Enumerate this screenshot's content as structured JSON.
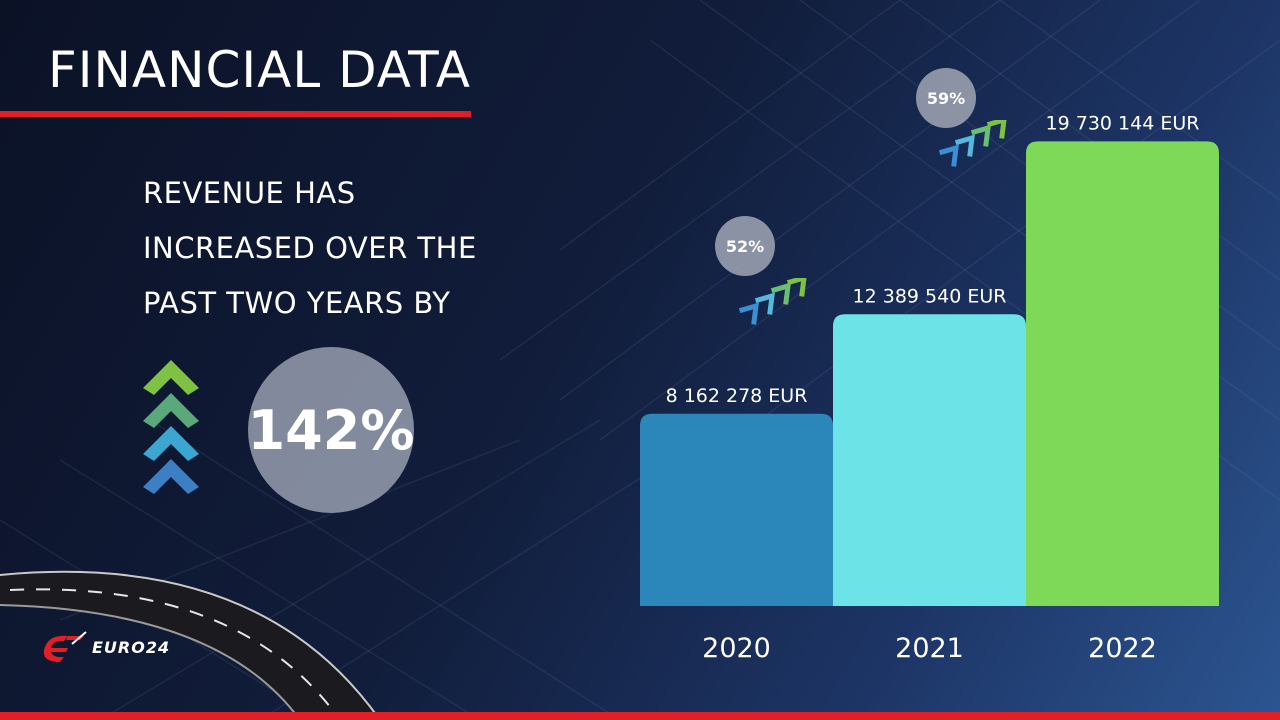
{
  "slide": {
    "title": "FINANCIAL DATA",
    "headline_lines": [
      "REVENUE HAS",
      "INCREASED OVER THE",
      "PAST TWO YEARS BY"
    ],
    "total_growth": "142%",
    "growth_badges": [
      "52%",
      "59%"
    ],
    "logo_text": "EURO24"
  },
  "colors": {
    "accent_red": "#e11f26",
    "bar_2020": "#2b87ba",
    "bar_2021": "#6ce3e6",
    "bar_2022": "#7dd957"
  },
  "chart_data": {
    "type": "bar",
    "categories": [
      "2020",
      "2021",
      "2022"
    ],
    "values": [
      8162278,
      12389540,
      19730144
    ],
    "value_labels": [
      "8 162 278 EUR",
      "12 389 540 EUR",
      "19 730 144 EUR"
    ],
    "ylim": [
      0,
      20300000
    ],
    "grid": false,
    "legend": "none"
  }
}
